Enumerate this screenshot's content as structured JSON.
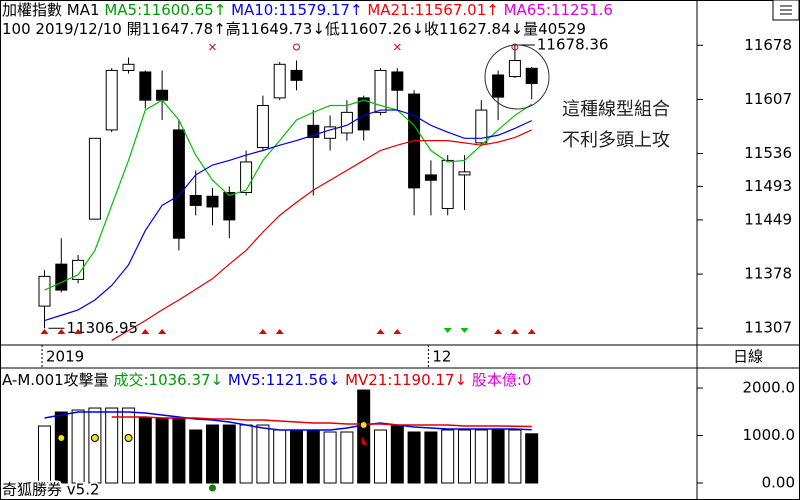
{
  "chart_data": [
    {
      "type": "candlestick",
      "title": "加權指數",
      "subtitle": "MA1",
      "info": "100 2019/12/10 開11647.78↑高11649.73↓低11607.26↓收11627.84↓量40529",
      "categories": [
        "2019",
        null,
        null,
        null,
        null,
        null,
        null,
        null,
        null,
        null,
        null,
        null,
        null,
        null,
        null,
        null,
        null,
        null,
        null,
        null,
        null,
        null,
        null,
        "12",
        null,
        null,
        null,
        null,
        null,
        null
      ],
      "open": [
        11336,
        11391,
        11371,
        11450,
        11567,
        11645,
        11643,
        11619,
        11567,
        11481,
        11480,
        11485,
        11485,
        11544,
        11609,
        11645,
        11573,
        11556,
        11563,
        11609,
        11590,
        11643,
        11614,
        11508,
        11464,
        11508,
        11550,
        11639,
        11637,
        11647.78
      ],
      "high": [
        11383,
        11425,
        11403,
        11556,
        11648,
        11662,
        11645,
        11645,
        11580,
        11514,
        11491,
        11493,
        11540,
        11612,
        11656,
        11658,
        11593,
        11586,
        11606,
        11612,
        11648,
        11648,
        11619,
        11527,
        11534,
        11534,
        11606,
        11645,
        11678.36,
        11649.73
      ],
      "low": [
        11306.95,
        11354,
        11366,
        11450,
        11564,
        11641,
        11595,
        11580,
        11409,
        11455,
        11442,
        11425,
        11481,
        11540,
        11606,
        11619,
        11481,
        11540,
        11553,
        11553,
        11586,
        11593,
        11455,
        11455,
        11455,
        11462,
        11547,
        11580,
        11635,
        11607.26
      ],
      "close": [
        11375,
        11357,
        11396,
        11556,
        11645,
        11653,
        11606,
        11606,
        11425,
        11468,
        11466,
        11449,
        11525,
        11599,
        11653,
        11632,
        11557,
        11571,
        11590,
        11567,
        11645,
        11619,
        11491,
        11501,
        11527,
        11512,
        11593,
        11610,
        11658,
        11627.84
      ],
      "series": [
        {
          "name": "MA5:11600.65↑",
          "color": "#00c000",
          "text_color": "#009a00",
          "values": [
            11357,
            11367,
            11377,
            11409,
            11468,
            11527,
            11593,
            11606,
            11580,
            11534,
            11501,
            11481,
            11488,
            11527,
            11553,
            11580,
            11590,
            11599,
            11599,
            11606,
            11599,
            11593,
            11573,
            11540,
            11525,
            11527,
            11547,
            11567,
            11586,
            11600.65
          ]
        },
        {
          "name": "MA10:11579.17↑",
          "color": "#0000e0",
          "text_color": "#0000ff",
          "values": [
            11317,
            11324,
            11331,
            11344,
            11363,
            11390,
            11435,
            11468,
            11481,
            11508,
            11521,
            11527,
            11534,
            11540,
            11547,
            11553,
            11560,
            11567,
            11573,
            11586,
            11593,
            11593,
            11586,
            11573,
            11564,
            11556,
            11556,
            11560,
            11569,
            11579.17
          ]
        },
        {
          "name": "MA21:11567.01↑",
          "color": "#e00000",
          "text_color": "#ff0000",
          "values": [
            null,
            null,
            null,
            null,
            11291,
            11304,
            11317,
            11331,
            11344,
            11358,
            11372,
            11391,
            11409,
            11433,
            11455,
            11472,
            11488,
            11501,
            11514,
            11527,
            11540,
            11547,
            11553,
            11553,
            11553,
            11550,
            11547,
            11551,
            11557,
            11567.01
          ]
        }
      ],
      "extra_legend": {
        "text": "MA65:11251.6",
        "color": "#e000e0"
      },
      "high_label": 11678.36,
      "low_label": 11306.95,
      "annotation": [
        "這種線型組合",
        "不利多頭上攻"
      ],
      "period": "日線",
      "ylim": [
        11285,
        11698
      ],
      "yticks": [
        11678,
        11607,
        11536,
        11493,
        11449,
        11378,
        11307
      ],
      "grid": false
    },
    {
      "type": "bar",
      "title": "A-M.001攻擊量",
      "volume_label": {
        "text": "成交:1036.37↓",
        "color": "#009a00"
      },
      "values": [
        1200,
        1495,
        1537,
        1579,
        1579,
        1579,
        1368,
        1368,
        1368,
        1116,
        1221,
        1221,
        1221,
        1221,
        1116,
        1116,
        1116,
        1074,
        1074,
        1958,
        1116,
        1221,
        1074,
        1074,
        1116,
        1116,
        1116,
        1116,
        1116,
        1036.37
      ],
      "series": [
        {
          "name": "MV5:1121.56↓",
          "color": "#0000e0",
          "values": [
            1368,
            1432,
            1495,
            1495,
            1495,
            1495,
            1474,
            1432,
            1389,
            1347,
            1326,
            1284,
            1221,
            1158,
            1116,
            1116,
            1116,
            1116,
            1158,
            1221,
            1263,
            1221,
            1179,
            1158,
            1137,
            1137,
            1137,
            1137,
            1137,
            1121.56
          ]
        },
        {
          "name": "MV21:1190.17↓",
          "color": "#e00000",
          "values": [
            null,
            null,
            null,
            null,
            1389,
            1389,
            1389,
            1368,
            1368,
            1368,
            1347,
            1347,
            1326,
            1326,
            1305,
            1284,
            1263,
            1263,
            1242,
            1242,
            1242,
            1221,
            1221,
            1221,
            1221,
            1200,
            1200,
            1200,
            1195,
            1190.17
          ]
        }
      ],
      "extra_legend": {
        "text": "股本億:0",
        "color": "#e000e0"
      },
      "footer": "奇狐勝券 v5.2",
      "ylim": [
        0,
        2380
      ],
      "yticks": [
        {
          "value": 2000,
          "label": "2000.0"
        },
        {
          "value": 1000,
          "label": "1000.0"
        },
        {
          "value": 0,
          "label": "0.00"
        }
      ],
      "grid": false
    }
  ]
}
